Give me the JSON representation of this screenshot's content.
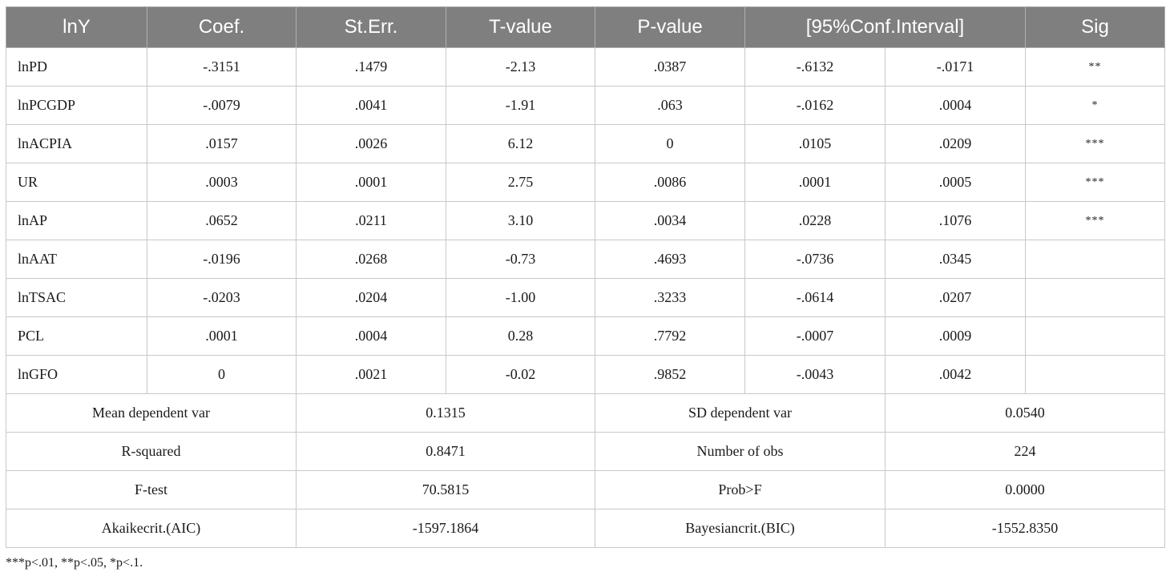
{
  "table": {
    "headers": {
      "var": "lnY",
      "coef": "Coef.",
      "sterr": "St.Err.",
      "tvalue": "T-value",
      "pvalue": "P-value",
      "ci": "[95%Conf.Interval]",
      "sig": "Sig"
    },
    "rows": [
      {
        "var": "lnPD",
        "coef": "-.3151",
        "sterr": ".1479",
        "t": "-2.13",
        "p": ".0387",
        "ci_low": "-.6132",
        "ci_high": "-.0171",
        "sig": "**"
      },
      {
        "var": "lnPCGDP",
        "coef": "-.0079",
        "sterr": ".0041",
        "t": "-1.91",
        "p": ".063",
        "ci_low": "-.0162",
        "ci_high": ".0004",
        "sig": "*"
      },
      {
        "var": "lnACPIA",
        "coef": ".0157",
        "sterr": ".0026",
        "t": "6.12",
        "p": "0",
        "ci_low": ".0105",
        "ci_high": ".0209",
        "sig": "***"
      },
      {
        "var": "UR",
        "coef": ".0003",
        "sterr": ".0001",
        "t": "2.75",
        "p": ".0086",
        "ci_low": ".0001",
        "ci_high": ".0005",
        "sig": "***"
      },
      {
        "var": "lnAP",
        "coef": ".0652",
        "sterr": ".0211",
        "t": "3.10",
        "p": ".0034",
        "ci_low": ".0228",
        "ci_high": ".1076",
        "sig": "***"
      },
      {
        "var": "lnAAT",
        "coef": "-.0196",
        "sterr": ".0268",
        "t": "-0.73",
        "p": ".4693",
        "ci_low": "-.0736",
        "ci_high": ".0345",
        "sig": ""
      },
      {
        "var": "lnTSAC",
        "coef": "-.0203",
        "sterr": ".0204",
        "t": "-1.00",
        "p": ".3233",
        "ci_low": "-.0614",
        "ci_high": ".0207",
        "sig": ""
      },
      {
        "var": "PCL",
        "coef": ".0001",
        "sterr": ".0004",
        "t": "0.28",
        "p": ".7792",
        "ci_low": "-.0007",
        "ci_high": ".0009",
        "sig": ""
      },
      {
        "var": "lnGFO",
        "coef": "0",
        "sterr": ".0021",
        "t": "-0.02",
        "p": ".9852",
        "ci_low": "-.0043",
        "ci_high": ".0042",
        "sig": ""
      }
    ],
    "stats": [
      {
        "label1": "Mean dependent var",
        "value1": "0.1315",
        "label2": "SD dependent var",
        "value2": "0.0540"
      },
      {
        "label1": "R-squared",
        "value1": "0.8471",
        "label2": "Number of obs",
        "value2": "224"
      },
      {
        "label1": "F-test",
        "value1": "70.5815",
        "label2": "Prob>F",
        "value2": "0.0000"
      },
      {
        "label1": "Akaikecrit.(AIC)",
        "value1": "-1597.1864",
        "label2": "Bayesiancrit.(BIC)",
        "value2": "-1552.8350"
      }
    ]
  },
  "footnote": "***p<.01, **p<.05, *p<.1.",
  "colors": {
    "header_bg": "#7f7f7f",
    "header_text": "#ffffff",
    "border": "#c8c8c8"
  }
}
